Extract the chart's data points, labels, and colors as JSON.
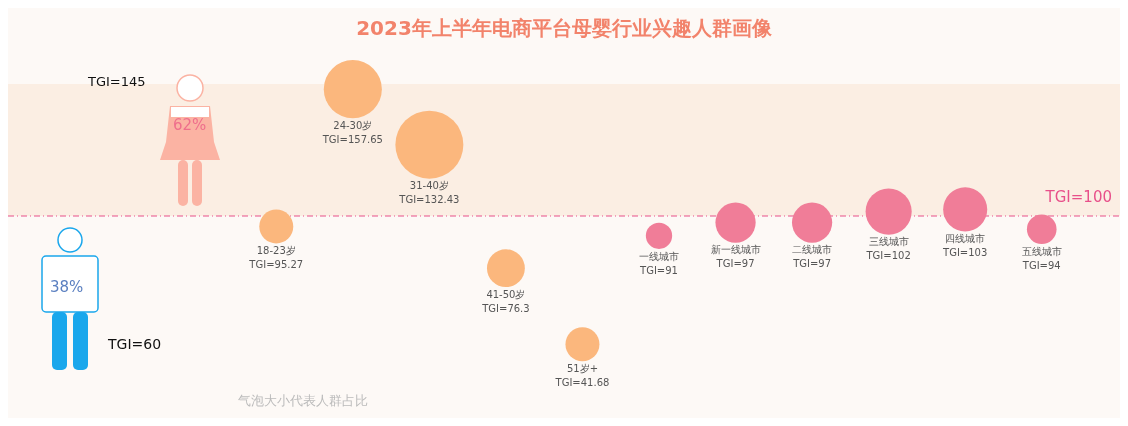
{
  "chart_data": {
    "type": "bubble",
    "title": "2023年上半年电商平台母婴行业兴趣人群画像",
    "categories": [
      "18-23岁",
      "24-30岁",
      "31-40岁",
      "41-50岁",
      "51岁+",
      "一线城市",
      "新一线城市",
      "二线城市",
      "三线城市",
      "四线城市",
      "五线城市"
    ],
    "series": [
      {
        "color": "#fbb77d",
        "values": [
          95.27,
          157.65,
          132.43,
          76.3,
          41.68,
          null,
          null,
          null,
          null,
          null,
          null
        ],
        "sizes": [
          0.25,
          0.73,
          1,
          0.31,
          0.25,
          null,
          null,
          null,
          null,
          null,
          null
        ],
        "value_labels": [
          "TGI=95.27",
          "TGI=157.65",
          "TGI=132.43",
          "TGI=76.3",
          "TGI=41.68",
          null,
          null,
          null,
          null,
          null,
          null
        ]
      },
      {
        "color": "#f07d98",
        "values": [
          null,
          null,
          null,
          null,
          null,
          91,
          97,
          97,
          102,
          103,
          94
        ],
        "sizes": [
          null,
          null,
          null,
          null,
          null,
          0.15,
          0.35,
          0.35,
          0.46,
          0.42,
          0.19
        ],
        "value_labels": [
          null,
          null,
          null,
          null,
          null,
          "TGI=91",
          "TGI=97",
          "TGI=97",
          "TGI=102",
          "TGI=103",
          "TGI=94"
        ]
      }
    ],
    "tick_labels": false,
    "bands": [
      {
        "axis": "y",
        "from": 100,
        "to": 160,
        "color": "#fbeee3"
      }
    ],
    "ref_lines": [
      {
        "axis": "y",
        "value": 100,
        "label": "TGI=100",
        "color": "#e8508a",
        "line_style": "dashed"
      }
    ],
    "annotations": [
      "TGI=145",
      "62%",
      "TGI=60",
      "38%",
      "气泡大小代表人群占比"
    ]
  }
}
